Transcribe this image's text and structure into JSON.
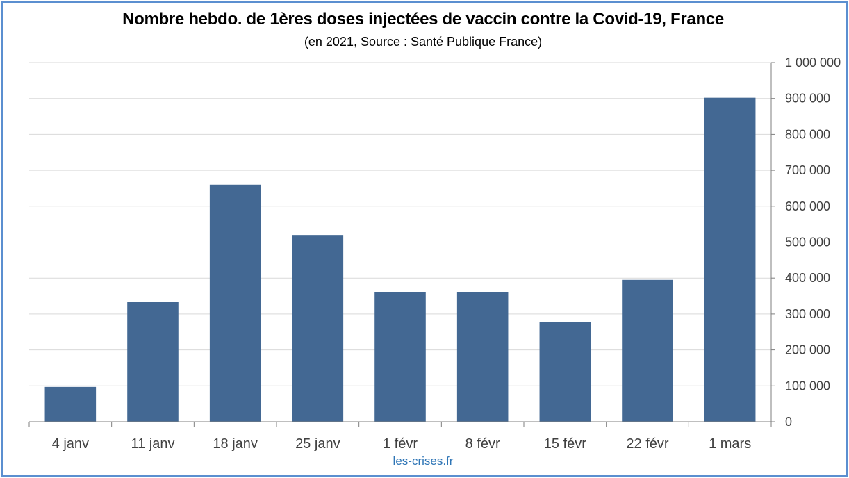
{
  "chart_data": {
    "type": "bar",
    "title": "Nombre hebdo. de 1ères doses injectées de vaccin contre la Covid-19, France",
    "subtitle": "(en 2021, Source : Santé Publique France)",
    "categories": [
      "4 janv",
      "11 janv",
      "18 janv",
      "25 janv",
      "1 févr",
      "8 févr",
      "15 févr",
      "22 févr",
      "1 mars"
    ],
    "values": [
      97000,
      333000,
      660000,
      520000,
      360000,
      360000,
      277000,
      395000,
      902000
    ],
    "ylim": [
      0,
      1000000
    ],
    "yticks": [
      0,
      100000,
      200000,
      300000,
      400000,
      500000,
      600000,
      700000,
      800000,
      900000,
      1000000
    ],
    "ytick_labels": [
      "0",
      "100 000",
      "200 000",
      "300 000",
      "400 000",
      "500 000",
      "600 000",
      "700 000",
      "800 000",
      "900 000",
      "1 000 000"
    ],
    "yaxis_position": "right",
    "grid": true,
    "bar_color": "#436893",
    "grid_color": "#d9d9d9",
    "axis_color": "#7f7f7f"
  },
  "footer": {
    "source": "les-crises.fr"
  }
}
